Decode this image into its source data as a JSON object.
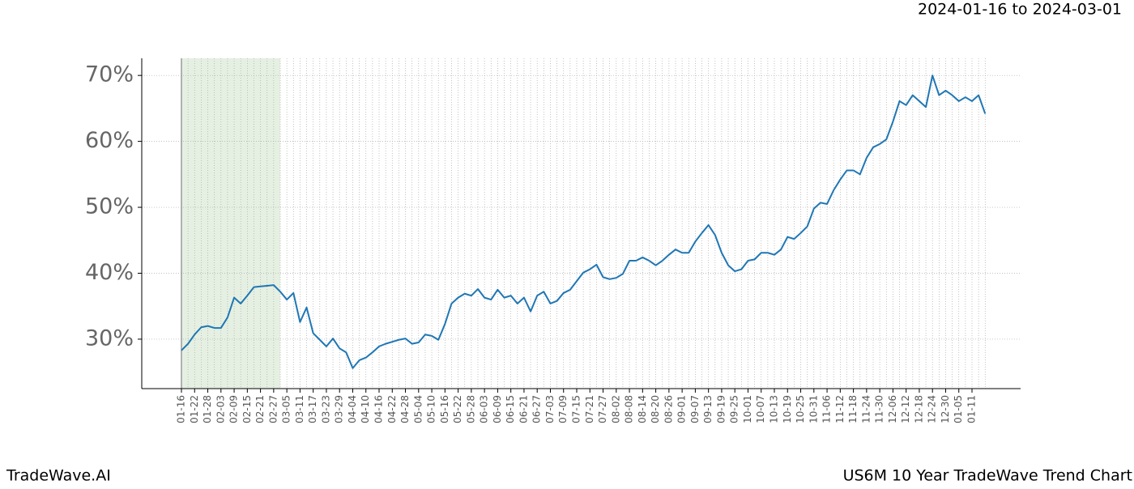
{
  "chart_data": {
    "type": "line",
    "subtitle": "2024-01-16 to 2024-03-01",
    "footer_left": "TradeWave.AI",
    "footer_right": "US6M 10 Year TradeWave Trend Chart",
    "categories": [
      "01-16",
      null,
      "01-22",
      null,
      "01-28",
      null,
      "02-03",
      null,
      "02-09",
      null,
      "02-15",
      null,
      "02-21",
      null,
      "02-27",
      null,
      "03-05",
      null,
      "03-11",
      null,
      "03-17",
      null,
      "03-23",
      null,
      "03-29",
      null,
      "04-04",
      null,
      "04-10",
      null,
      "04-16",
      null,
      "04-22",
      null,
      "04-28",
      null,
      "05-04",
      null,
      "05-10",
      null,
      "05-16",
      null,
      "05-22",
      null,
      "05-28",
      null,
      "06-03",
      null,
      "06-09",
      null,
      "06-15",
      null,
      "06-21",
      null,
      "06-27",
      null,
      "07-03",
      null,
      "07-09",
      null,
      "07-15",
      null,
      "07-21",
      null,
      "07-27",
      null,
      "08-02",
      null,
      "08-08",
      null,
      "08-14",
      null,
      "08-20",
      null,
      "08-26",
      null,
      "09-01",
      null,
      "09-07",
      null,
      "09-13",
      null,
      "09-19",
      null,
      "09-25",
      null,
      "10-01",
      null,
      "10-07",
      null,
      "10-13",
      null,
      "10-19",
      null,
      "10-25",
      null,
      "10-31",
      null,
      "11-06",
      null,
      "11-12",
      null,
      "11-18",
      null,
      "11-24",
      null,
      "11-30",
      null,
      "12-06",
      null,
      "12-12",
      null,
      "12-18",
      null,
      "12-24",
      null,
      "12-30",
      null,
      "01-05",
      null,
      "01-11",
      null,
      null
    ],
    "values": [
      28.3,
      29.3,
      30.7,
      31.8,
      32.0,
      31.7,
      31.7,
      33.3,
      36.3,
      35.4,
      36.6,
      37.9,
      38.0,
      38.1,
      38.2,
      37.2,
      36.0,
      37.0,
      32.6,
      34.8,
      30.9,
      29.9,
      28.9,
      30.1,
      28.6,
      28.0,
      25.6,
      26.8,
      27.2,
      28.0,
      28.9,
      29.3,
      29.6,
      29.9,
      30.1,
      29.3,
      29.5,
      30.7,
      30.5,
      29.9,
      32.3,
      35.4,
      36.3,
      36.9,
      36.6,
      37.6,
      36.3,
      36.0,
      37.5,
      36.3,
      36.6,
      35.4,
      36.3,
      34.2,
      36.6,
      37.2,
      35.4,
      35.8,
      37.0,
      37.5,
      38.8,
      40.1,
      40.6,
      41.3,
      39.4,
      39.1,
      39.3,
      39.9,
      41.9,
      41.9,
      42.4,
      41.9,
      41.2,
      41.9,
      42.8,
      43.6,
      43.1,
      43.1,
      44.8,
      46.1,
      47.3,
      45.8,
      43.1,
      41.2,
      40.3,
      40.6,
      41.9,
      42.1,
      43.1,
      43.1,
      42.8,
      43.6,
      45.5,
      45.2,
      46.1,
      47.1,
      49.8,
      50.7,
      50.5,
      52.6,
      54.2,
      55.6,
      55.6,
      55.0,
      57.5,
      59.1,
      59.6,
      60.3,
      63.0,
      66.1,
      65.5,
      67.0,
      66.1,
      65.2,
      70.0,
      67.0,
      67.7,
      67.0,
      66.1,
      66.7,
      66.1,
      67.0,
      64.2
    ],
    "color": "#1f77b4",
    "ylim": [
      22.5,
      72.6
    ],
    "yticks": [
      {
        "value": 30,
        "label": "30%"
      },
      {
        "value": 40,
        "label": "40%"
      },
      {
        "value": 50,
        "label": "50%"
      },
      {
        "value": 60,
        "label": "60%"
      },
      {
        "value": 70,
        "label": "70%"
      }
    ],
    "grid": true
  }
}
